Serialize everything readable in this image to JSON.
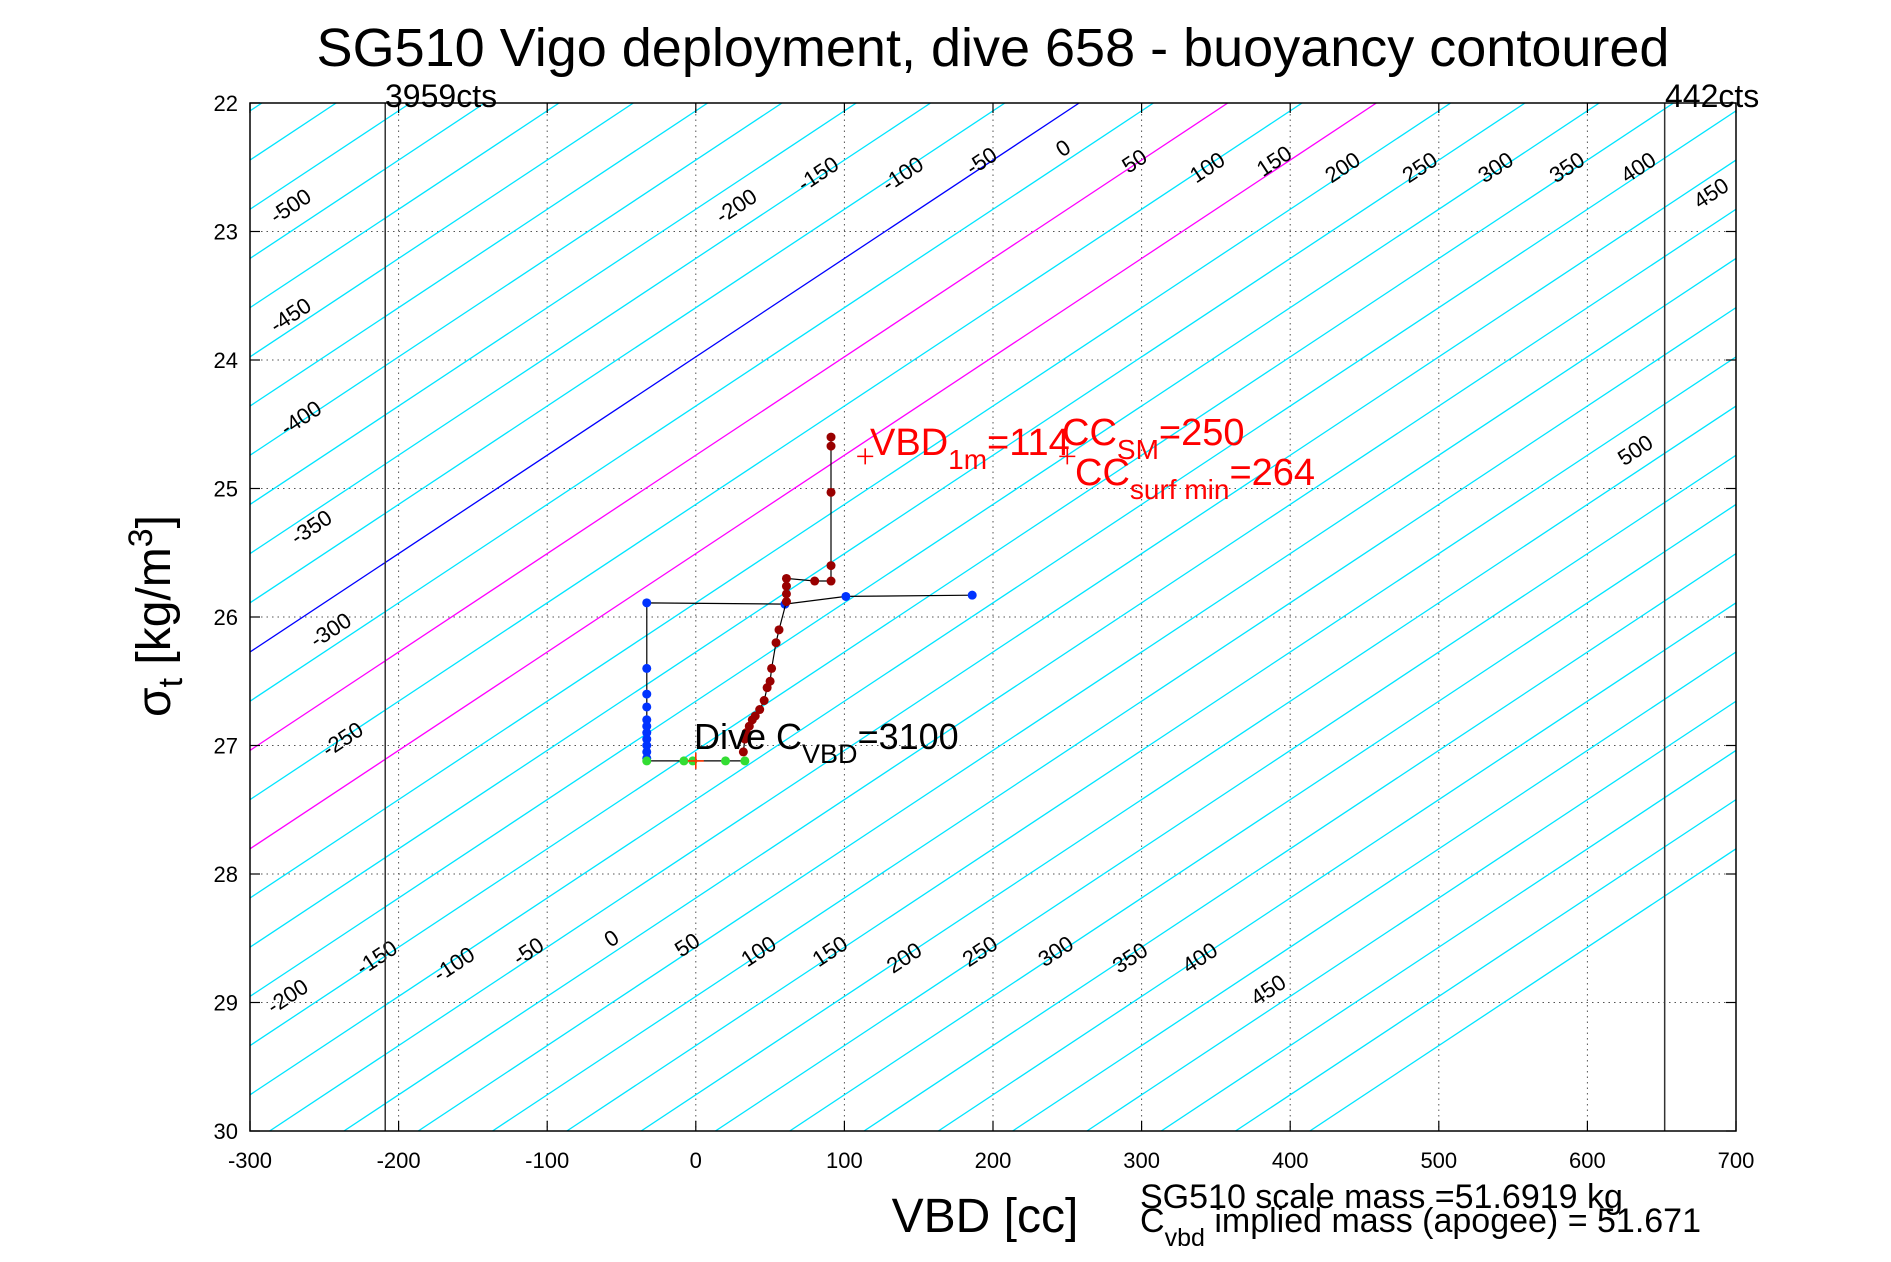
{
  "figure": {
    "title": "SG510 Vigo deployment, dive 658 - buoyancy contoured",
    "xlabel": "VBD [cc]",
    "ylabel_main": "σ",
    "ylabel_sub": "t",
    "ylabel_rest": " [kg/m",
    "ylabel_sup": "3",
    "ylabel_end": "]",
    "left_count_label": "3959cts",
    "right_count_label": "442cts",
    "footer_line1": "SG510 scale mass =51.6919 kg",
    "footer_line2_prefix": "C",
    "footer_line2_sub": "vbd",
    "footer_line2_rest": " implied mass (apogee) = 51.671",
    "annotations": {
      "vbd1m_main": "VBD",
      "vbd1m_sub": "1m",
      "vbd1m_rest": "=114",
      "ccsm_main": "CC",
      "ccsm_sub": "SM",
      "ccsm_rest": "=250",
      "ccsurf_main": "CC",
      "ccsurf_sub": "surf min",
      "ccsurf_rest": "=264",
      "dive_main": "Dive C",
      "dive_sub": "VBD",
      "dive_rest": "=3100"
    }
  },
  "chart_data": {
    "type": "scatter",
    "xlim": [
      -300,
      700
    ],
    "ylim": [
      22,
      30
    ],
    "y_reversed": true,
    "grid": true,
    "xticks": [
      -300,
      -200,
      -100,
      0,
      100,
      200,
      300,
      400,
      500,
      600,
      700
    ],
    "xtick_labels": [
      "-300",
      "-200",
      "-100",
      "0",
      "100",
      "200",
      "300",
      "400",
      "500",
      "600",
      "700"
    ],
    "yticks": [
      22,
      23,
      24,
      25,
      26,
      27,
      28,
      29,
      30
    ],
    "ytick_labels": [
      "22",
      "23",
      "24",
      "25",
      "26",
      "27",
      "28",
      "29",
      "30"
    ],
    "vbd_limits": [
      -209,
      652
    ],
    "contours": {
      "values": [
        -500,
        -450,
        -400,
        -350,
        -300,
        -250,
        -200,
        -150,
        -100,
        -50,
        0,
        50,
        100,
        150,
        200,
        250,
        300,
        350,
        400,
        450,
        500
      ],
      "slope_cc_per_sigma": 130.6,
      "zero_at_sigma22": 258,
      "highlight": {
        "0": "#0000ff",
        "100": "#ff00ff",
        "200": "#ff00ff"
      },
      "default_color": "#00e5ff",
      "top_labels": [
        {
          "value": "-500",
          "x": -270,
          "y": 22.85
        },
        {
          "value": "-450",
          "x": -270,
          "y": 23.7
        },
        {
          "value": "-400",
          "x": -263,
          "y": 24.5
        },
        {
          "value": "-350",
          "x": -256,
          "y": 25.35
        },
        {
          "value": "-300",
          "x": -243,
          "y": 26.15
        },
        {
          "value": "-250",
          "x": -235,
          "y": 27.0
        },
        {
          "value": "-200",
          "x": 30,
          "y": 22.85
        },
        {
          "value": "-150",
          "x": 85,
          "y": 22.6
        },
        {
          "value": "-100",
          "x": 142,
          "y": 22.6
        },
        {
          "value": "-50",
          "x": 195,
          "y": 22.5
        },
        {
          "value": "0",
          "x": 250,
          "y": 22.4
        },
        {
          "value": "50",
          "x": 298,
          "y": 22.5
        },
        {
          "value": "100",
          "x": 347,
          "y": 22.55
        },
        {
          "value": "150",
          "x": 392,
          "y": 22.5
        },
        {
          "value": "200",
          "x": 438,
          "y": 22.55
        },
        {
          "value": "250",
          "x": 490,
          "y": 22.55
        },
        {
          "value": "300",
          "x": 541,
          "y": 22.55
        },
        {
          "value": "350",
          "x": 589,
          "y": 22.55
        },
        {
          "value": "400",
          "x": 637,
          "y": 22.55
        },
        {
          "value": "450",
          "x": 686,
          "y": 22.75
        },
        {
          "value": "500",
          "x": 635,
          "y": 24.75
        }
      ],
      "bottom_labels": [
        {
          "value": "-200",
          "x": -272,
          "y": 29.0
        },
        {
          "value": "-150",
          "x": -212,
          "y": 28.7
        },
        {
          "value": "-100",
          "x": -160,
          "y": 28.75
        },
        {
          "value": "-50",
          "x": -110,
          "y": 28.65
        },
        {
          "value": "0",
          "x": -54,
          "y": 28.55
        },
        {
          "value": "50",
          "x": -3,
          "y": 28.6
        },
        {
          "value": "100",
          "x": 45,
          "y": 28.65
        },
        {
          "value": "150",
          "x": 93,
          "y": 28.65
        },
        {
          "value": "200",
          "x": 143,
          "y": 28.7
        },
        {
          "value": "250",
          "x": 194,
          "y": 28.65
        },
        {
          "value": "300",
          "x": 245,
          "y": 28.65
        },
        {
          "value": "350",
          "x": 295,
          "y": 28.7
        },
        {
          "value": "400",
          "x": 342,
          "y": 28.7
        },
        {
          "value": "450",
          "x": 388,
          "y": 28.95
        }
      ]
    },
    "series": [
      {
        "color": "#0033ff",
        "points": [
          [
            186,
            25.83
          ],
          [
            101,
            25.84
          ],
          [
            60,
            25.9
          ],
          [
            -33,
            25.89
          ],
          [
            -33,
            26.4
          ],
          [
            -33,
            26.6
          ],
          [
            -33,
            26.7
          ],
          [
            -33,
            26.8
          ],
          [
            -33,
            26.85
          ],
          [
            -33,
            26.9
          ],
          [
            -33,
            26.95
          ],
          [
            -33,
            27.0
          ],
          [
            -33,
            27.05
          ],
          [
            -33,
            27.1
          ]
        ]
      },
      {
        "color": "#990000",
        "points": [
          [
            91,
            24.6
          ],
          [
            91,
            24.67
          ],
          [
            91,
            25.03
          ],
          [
            91,
            25.6
          ],
          [
            91,
            25.72
          ],
          [
            80,
            25.72
          ],
          [
            61,
            25.7
          ],
          [
            61,
            25.76
          ],
          [
            61,
            25.82
          ],
          [
            61,
            25.88
          ],
          [
            56,
            26.1
          ],
          [
            54,
            26.2
          ],
          [
            51,
            26.4
          ],
          [
            50,
            26.5
          ],
          [
            48,
            26.55
          ],
          [
            46,
            26.65
          ],
          [
            43,
            26.72
          ],
          [
            40,
            26.77
          ],
          [
            38,
            26.8
          ],
          [
            36,
            26.85
          ],
          [
            34,
            26.9
          ],
          [
            33,
            26.95
          ],
          [
            32,
            27.05
          ]
        ]
      },
      {
        "color": "#33dd33",
        "points": [
          [
            -33,
            27.12
          ],
          [
            -8,
            27.12
          ],
          [
            -2,
            27.12
          ],
          [
            20,
            27.12
          ],
          [
            33,
            27.12
          ]
        ]
      }
    ],
    "markers": [
      {
        "x": 114,
        "y": 24.75,
        "color": "#ff0000"
      },
      {
        "x": 250,
        "y": 24.75,
        "color": "#ff0000"
      },
      {
        "x": 0,
        "y": 27.12,
        "color": "#ff3300"
      }
    ]
  }
}
